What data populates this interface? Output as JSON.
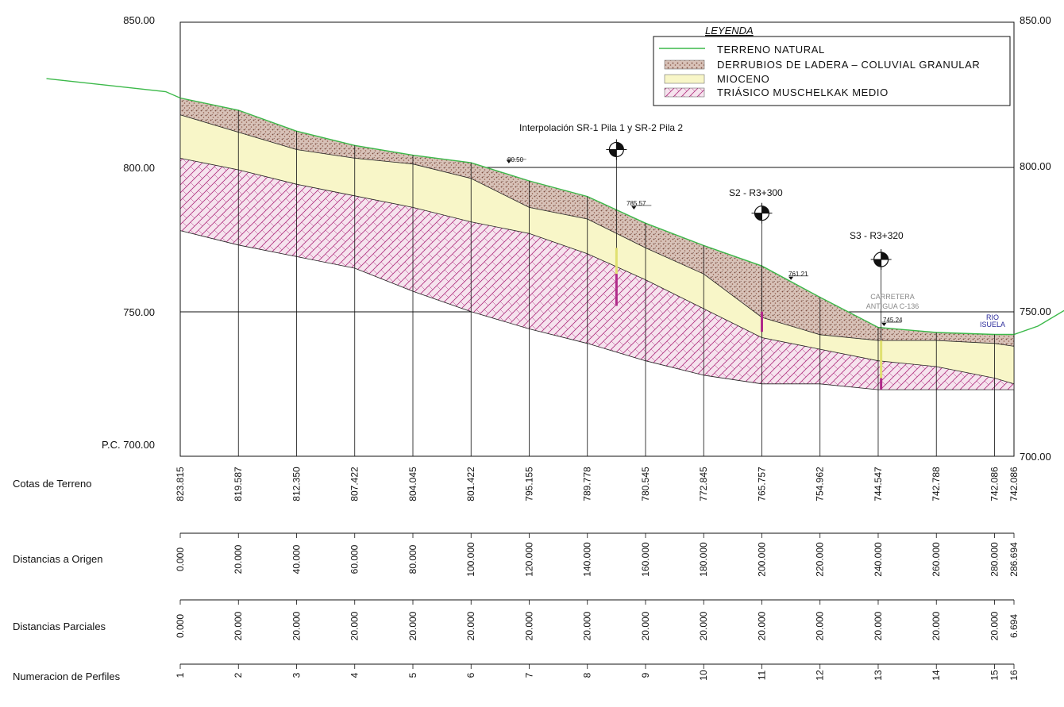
{
  "y_axis": {
    "labels_left": [
      "850.00",
      "800.00",
      "750.00",
      "P.C. 700.00"
    ],
    "labels_right": [
      "850.00",
      "800.00",
      "750.00",
      "700.00"
    ]
  },
  "legend": {
    "title": "LEYENDA",
    "items": [
      {
        "label": "TERRENO NATURAL",
        "color": "#3cb94a",
        "type": "line"
      },
      {
        "label": "DERRUBIOS DE LADERA – COLUVIAL GRANULAR",
        "color": "#b98b78",
        "type": "dots"
      },
      {
        "label": "MIOCENO",
        "color": "#f8f6c8",
        "type": "fill"
      },
      {
        "label": "TRIÁSICO MUSCHELKAK MEDIO",
        "color": "#c040a0",
        "type": "hatch"
      }
    ]
  },
  "annotations": {
    "boreholes": [
      {
        "label": "Interpolación SR-1 Pila 1 y SR-2 Pila 2",
        "x": 150,
        "top_elev": 806
      },
      {
        "label": "S2 - R3+300",
        "x": 200,
        "top_elev": 784
      },
      {
        "label": "S3 - R3+320",
        "x": 241,
        "top_elev": 768
      }
    ],
    "level_marks": [
      {
        "text": "80.50",
        "x": 113,
        "elev": 801.5
      },
      {
        "text": "785.57",
        "x": 156,
        "elev": 785.57
      },
      {
        "text": "761.21",
        "x": 210,
        "elev": 761.21
      },
      {
        "text": "745.24",
        "x": 242,
        "elev": 745.24
      }
    ],
    "road_label_1": "CARRETERA",
    "road_label_2": "ANTIGUA C-136",
    "river_label_1": "RIO",
    "river_label_2": "ISUELA"
  },
  "table": {
    "row_labels": {
      "cotas": "Cotas de Terreno",
      "distancias_origen": "Distancias a Origen",
      "distancias_parciales": "Distancias Parciales",
      "perfiles": "Numeracion de Perfiles"
    },
    "cotas": [
      "823.815",
      "819.587",
      "812.350",
      "807.422",
      "804.045",
      "801.422",
      "795.155",
      "789.778",
      "780.545",
      "772.845",
      "765.757",
      "754.962",
      "744.547",
      "742.788",
      "742.086",
      "742.086"
    ],
    "distancias_origen": [
      "0.000",
      "20.000",
      "40.000",
      "60.000",
      "80.000",
      "100.000",
      "120.000",
      "140.000",
      "160.000",
      "180.000",
      "200.000",
      "220.000",
      "240.000",
      "260.000",
      "280.000",
      "286.694"
    ],
    "distancias_parciales": [
      "0.000",
      "20.000",
      "20.000",
      "20.000",
      "20.000",
      "20.000",
      "20.000",
      "20.000",
      "20.000",
      "20.000",
      "20.000",
      "20.000",
      "20.000",
      "20.000",
      "20.000",
      "6.694"
    ],
    "perfiles": [
      "1",
      "2",
      "3",
      "4",
      "5",
      "6",
      "7",
      "8",
      "9",
      "10",
      "11",
      "12",
      "13",
      "14",
      "15",
      "16"
    ]
  },
  "chart_data": {
    "type": "area",
    "xlabel": "Distancias a Origen",
    "ylabel": "",
    "ylim": [
      700,
      850
    ],
    "xlim": [
      0,
      286.694
    ],
    "x": [
      0,
      20,
      40,
      60,
      80,
      100,
      120,
      140,
      160,
      180,
      200,
      220,
      240,
      260,
      280,
      286.694
    ],
    "series": [
      {
        "name": "TERRENO NATURAL",
        "values": [
          823.815,
          819.587,
          812.35,
          807.422,
          804.045,
          801.422,
          795.155,
          789.778,
          780.545,
          772.845,
          765.757,
          754.962,
          744.547,
          742.788,
          742.086,
          742.086
        ]
      },
      {
        "name": "DERRUBIOS DE LADERA – COLUVIAL GRANULAR",
        "values": [
          818,
          812,
          806,
          803,
          801,
          796,
          786,
          782,
          772,
          763,
          748,
          742,
          740,
          740,
          739,
          738
        ]
      },
      {
        "name": "MIOCENO",
        "values": [
          803,
          799,
          794,
          790,
          786,
          781,
          777,
          770,
          761,
          751,
          741,
          737,
          733,
          731,
          727,
          725
        ]
      },
      {
        "name": "TRIÁSICO MUSCHELKAK MEDIO",
        "values": [
          778,
          773,
          769,
          765,
          757,
          750,
          744,
          739,
          733,
          728,
          725,
          725,
          723,
          723,
          723,
          723
        ]
      }
    ],
    "terrain_extension_left": [
      [
        -46,
        830.5
      ],
      [
        -5,
        826
      ]
    ],
    "terrain_extension_right": [
      [
        295,
        745
      ],
      [
        305,
        751
      ]
    ]
  }
}
